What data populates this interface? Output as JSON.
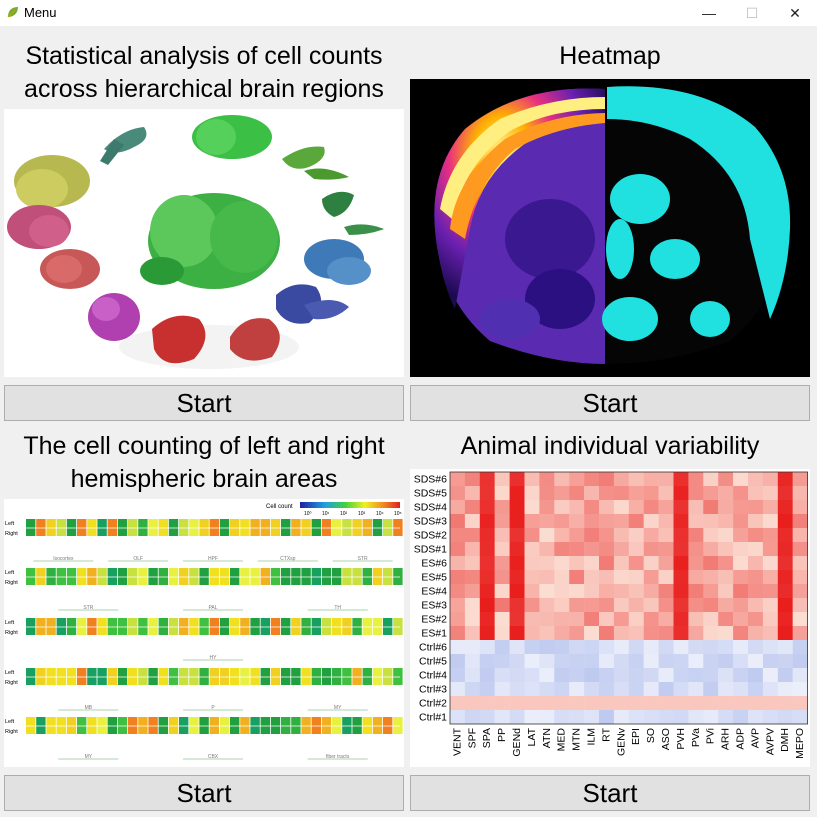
{
  "window": {
    "title": "Menu",
    "icon": "leaf-icon",
    "min_glyph": "—",
    "max_glyph": "☐",
    "close_glyph": "✕"
  },
  "panels": [
    {
      "title_line1": "Statistical analysis of cell counts",
      "title_line2": "across hierarchical brain regions",
      "button": "Start"
    },
    {
      "title_line1": "Heatmap",
      "button": "Start"
    },
    {
      "title_line1": "The cell counting of left and right",
      "title_line2": "hemispheric brain areas",
      "button": "Start"
    },
    {
      "title_line1": "Animal individual variability",
      "button": "Start"
    }
  ],
  "hemisphere_chart": {
    "legend_title": "Cell count",
    "legend_ticks": [
      "10⁰",
      "10¹",
      "10²",
      "10³",
      "10⁴",
      "10⁵"
    ],
    "row_labels": [
      "Left",
      "Right"
    ],
    "group_labels": [
      [
        "Isocortex",
        "OLF",
        "HPF",
        "CTXsp",
        "STR"
      ],
      [
        "STR",
        "PAL",
        "TH"
      ],
      [
        "HY"
      ],
      [
        "MB",
        "P",
        "MY"
      ],
      [
        "MY",
        "CBX",
        "fiber tracts"
      ]
    ]
  },
  "heatmap": {
    "row_labels": [
      "SDS#6",
      "SDS#5",
      "SDS#4",
      "SDS#3",
      "SDS#2",
      "SDS#1",
      "ES#6",
      "ES#5",
      "ES#4",
      "ES#3",
      "ES#2",
      "ES#1",
      "Ctrl#6",
      "Ctrl#5",
      "Ctrl#4",
      "Ctrl#3",
      "Ctrl#2",
      "Ctrl#1"
    ],
    "col_labels": [
      "VENT",
      "SPF",
      "SPA",
      "PP",
      "GENd",
      "LAT",
      "ATN",
      "MED",
      "MTN",
      "ILM",
      "RT",
      "GENv",
      "EPI",
      "SO",
      "ASO",
      "PVH",
      "PVa",
      "PVi",
      "ARH",
      "ADP",
      "AVP",
      "AVPV",
      "DMH",
      "MEPO"
    ],
    "colors": {
      "high": "#e8001c",
      "neutral": "#ffffff",
      "low": "#7f95e0"
    }
  }
}
